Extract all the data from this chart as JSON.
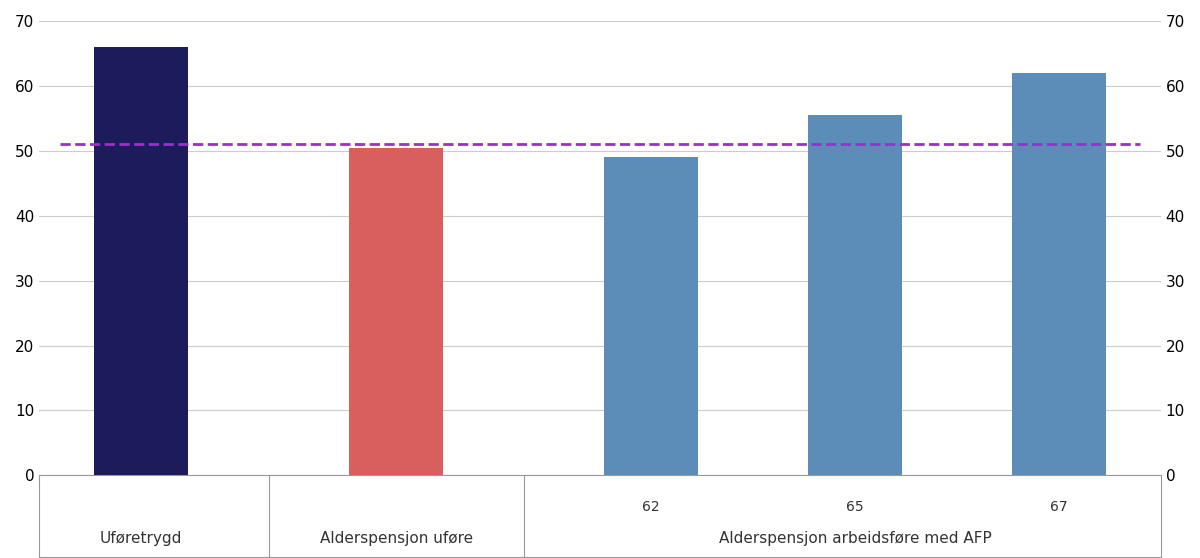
{
  "categories": [
    "Uføretrygd",
    "Alderspensjon uføre",
    "62",
    "65",
    "67"
  ],
  "values": [
    66,
    50.5,
    49,
    55.5,
    62
  ],
  "bar_colors": [
    "#1c1c5c",
    "#d95f5f",
    "#5b8db8",
    "#5b8db8",
    "#5b8db8"
  ],
  "dashed_line_y": 51,
  "dashed_line_color": "#9b30c8",
  "ylim": [
    0,
    70
  ],
  "yticks": [
    0,
    10,
    20,
    30,
    40,
    50,
    60,
    70
  ],
  "background_color": "#ffffff",
  "bar_width": 0.55,
  "figure_width": 12.0,
  "figure_height": 5.58,
  "grid_color": "#cccccc",
  "spine_color": "#999999",
  "label_color": "#333333",
  "sub_label_fontsize": 10,
  "group_label_fontsize": 11
}
